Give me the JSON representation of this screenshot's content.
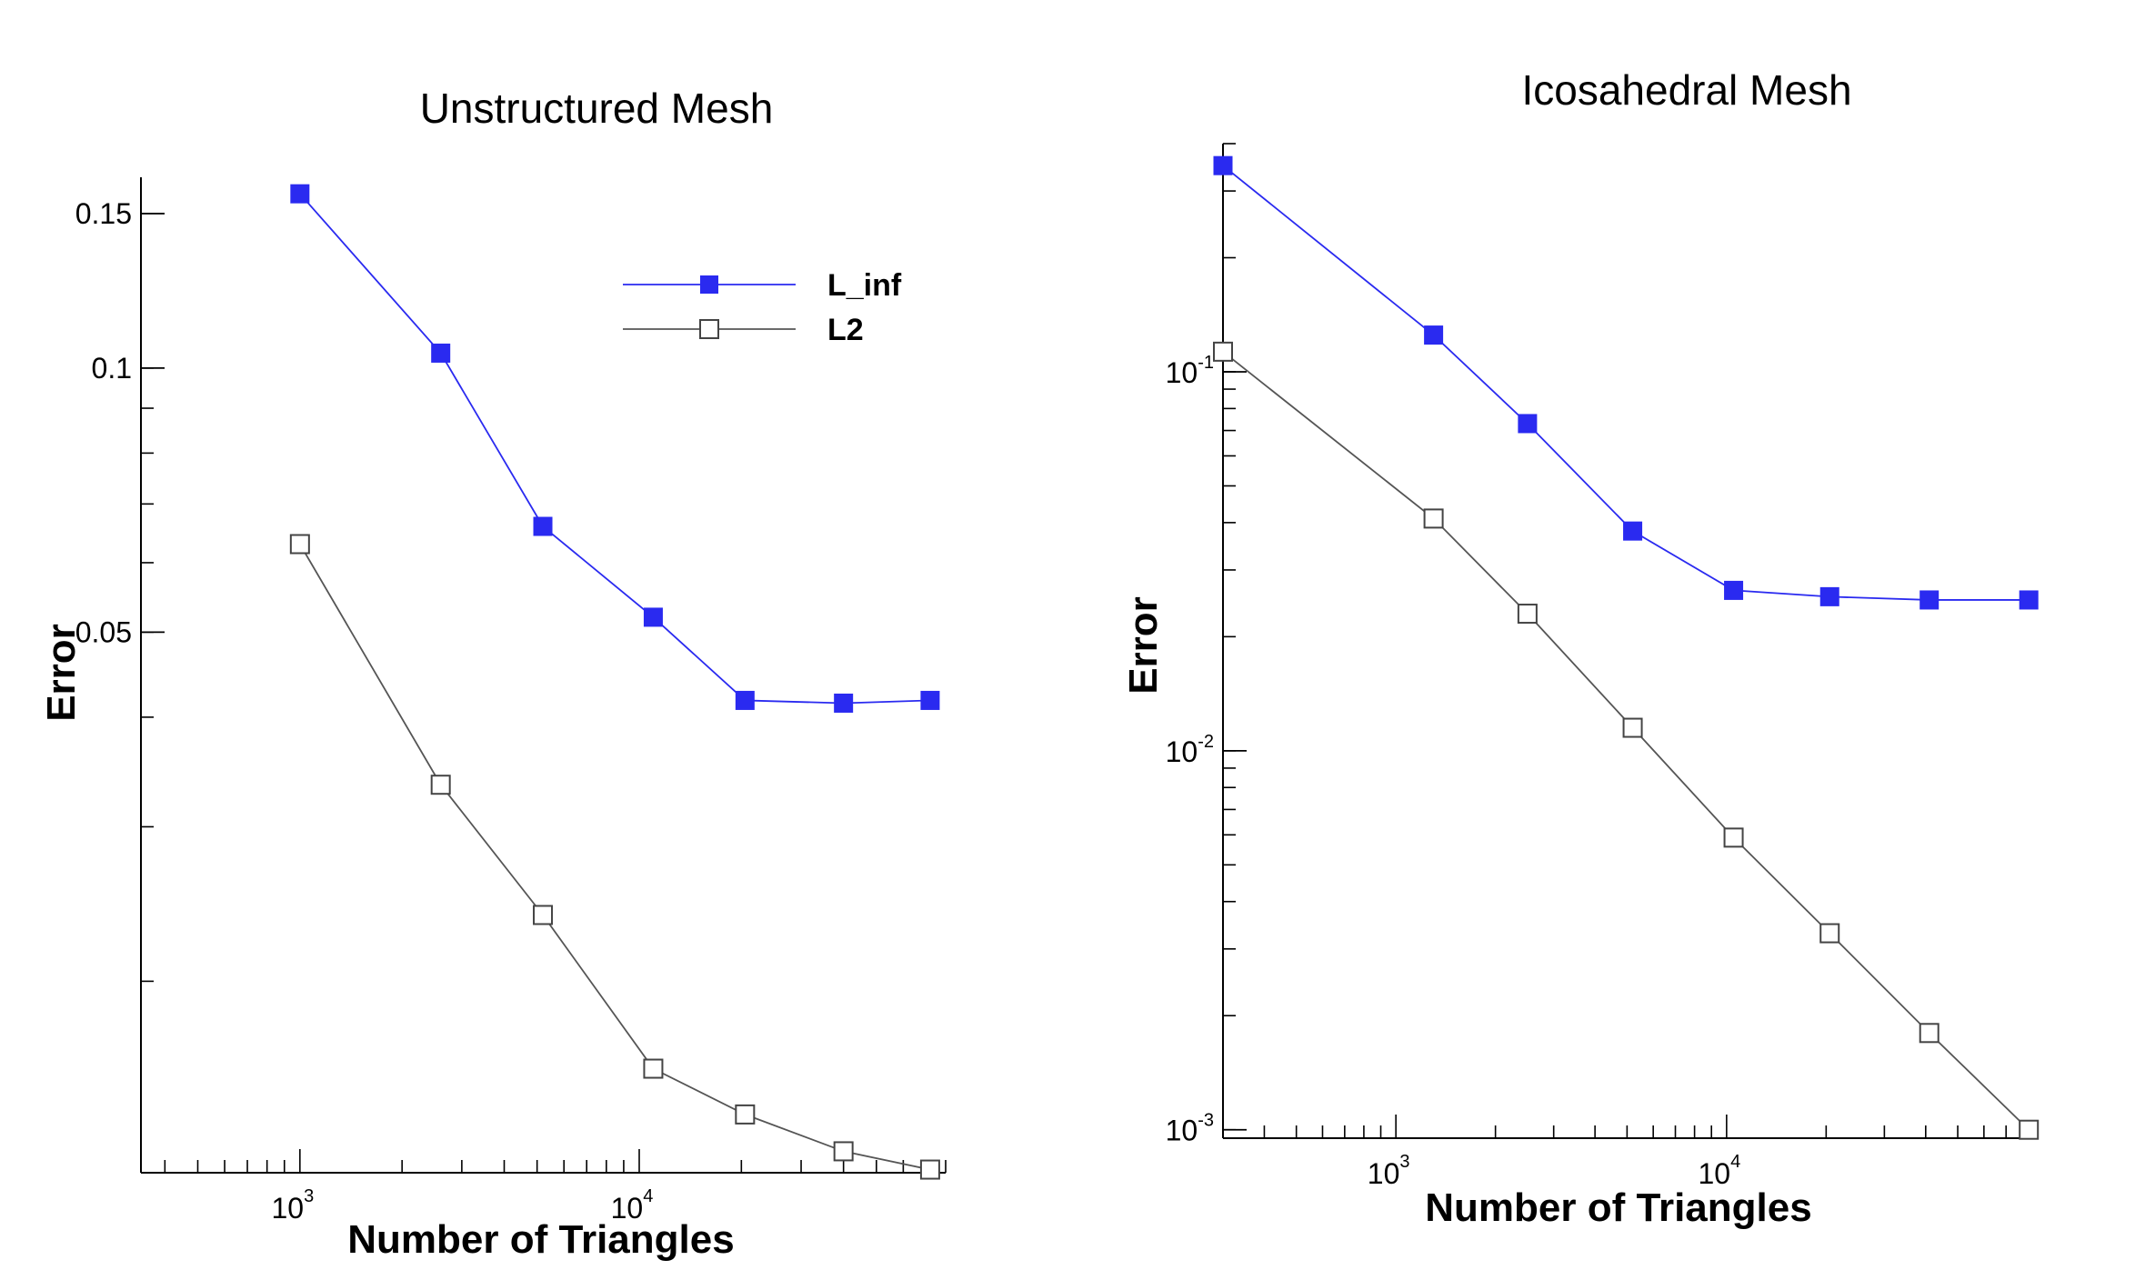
{
  "chart_data": [
    {
      "type": "line",
      "title": "Unstructured Mesh",
      "xlabel": "Number of Triangles",
      "ylabel": "Error",
      "xscale": "log",
      "yscale": "log",
      "xlim": [
        340,
        80000
      ],
      "ylim": [
        0.0121,
        0.165
      ],
      "x_ticks": [
        {
          "value": 1000,
          "base": "10",
          "exp": "3"
        },
        {
          "value": 10000,
          "base": "10",
          "exp": "4"
        }
      ],
      "y_ticks": [
        {
          "value": 0.05,
          "label": "0.05"
        },
        {
          "value": 0.1,
          "label": "0.1"
        },
        {
          "value": 0.15,
          "label": "0.15"
        }
      ],
      "legend": "top-right",
      "series": [
        {
          "name": "L_inf",
          "color": "#2a2af0",
          "marker": "filled-square",
          "x": [
            1000,
            2600,
            5200,
            11000,
            20500,
            40000,
            72000
          ],
          "y": [
            0.158,
            0.104,
            0.066,
            0.052,
            0.0418,
            0.0415,
            0.0418
          ]
        },
        {
          "name": "L2",
          "color": "#444444",
          "marker": "open-square",
          "x": [
            1000,
            2600,
            5200,
            11000,
            20500,
            40000,
            72000
          ],
          "y": [
            0.063,
            0.0335,
            0.0238,
            0.0159,
            0.0141,
            0.0128,
            0.0122
          ]
        }
      ]
    },
    {
      "type": "line",
      "title": "Icosahedral Mesh",
      "xlabel": "Number of Triangles",
      "ylabel": "Error",
      "xscale": "log",
      "yscale": "log",
      "xlim": [
        300,
        84000
      ],
      "ylim": [
        0.00095,
        0.4
      ],
      "x_ticks": [
        {
          "value": 1000,
          "base": "10",
          "exp": "3"
        },
        {
          "value": 10000,
          "base": "10",
          "exp": "4"
        }
      ],
      "y_ticks": [
        {
          "value": 0.1,
          "base": "10",
          "exp": "-1"
        },
        {
          "value": 0.01,
          "base": "10",
          "exp": "-2"
        },
        {
          "value": 0.001,
          "base": "10",
          "exp": "-3"
        }
      ],
      "legend": "none",
      "series": [
        {
          "name": "L_inf",
          "color": "#2a2af0",
          "marker": "filled-square",
          "x": [
            300,
            1300,
            2500,
            5200,
            10500,
            20500,
            41000,
            82000
          ],
          "y": [
            0.35,
            0.125,
            0.073,
            0.038,
            0.0265,
            0.0255,
            0.025,
            0.025
          ]
        },
        {
          "name": "L2",
          "color": "#444444",
          "marker": "open-square",
          "x": [
            300,
            1300,
            2500,
            5200,
            10500,
            20500,
            41000,
            82000
          ],
          "y": [
            0.113,
            0.041,
            0.023,
            0.0115,
            0.0059,
            0.0033,
            0.0018,
            0.001
          ]
        }
      ]
    }
  ]
}
